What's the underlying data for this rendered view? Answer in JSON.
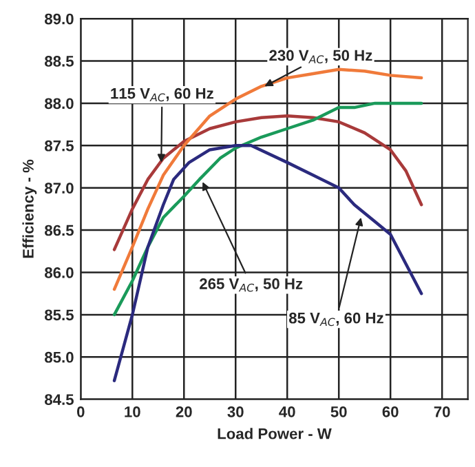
{
  "chart_data": {
    "type": "line",
    "xlabel": "Load Power - W",
    "ylabel": "Efficiency - %",
    "xlim": [
      0,
      75
    ],
    "xticks": [
      0,
      10,
      20,
      30,
      40,
      50,
      60,
      70
    ],
    "ylim": [
      84.5,
      89.0
    ],
    "yticks": [
      84.5,
      {
        "value": 85,
        "label": "85.0"
      },
      85.5,
      {
        "value": 86,
        "label": "86.0"
      },
      86.5,
      {
        "value": 87,
        "label": "87.0"
      },
      87.5,
      {
        "value": 88,
        "label": "88.0"
      },
      88.5,
      {
        "value": 89,
        "label": "89.0"
      }
    ],
    "grid": true,
    "marker": "none",
    "line_style": "solid",
    "series": [
      {
        "color": "#a83a3a",
        "x": [
          6.5,
          10,
          13,
          16,
          20,
          25,
          30,
          35,
          40,
          45,
          50,
          55,
          60,
          63,
          66
        ],
        "values": [
          86.27,
          86.75,
          87.1,
          87.35,
          87.55,
          87.7,
          87.78,
          87.83,
          87.85,
          87.83,
          87.78,
          87.65,
          87.45,
          87.2,
          86.8
        ]
      },
      {
        "color": "#f07a3a",
        "x": [
          6.5,
          10,
          13,
          16,
          20,
          25,
          30,
          35,
          40,
          45,
          50,
          55,
          60,
          66
        ],
        "values": [
          85.8,
          86.3,
          86.75,
          87.15,
          87.5,
          87.85,
          88.05,
          88.2,
          88.3,
          88.35,
          88.4,
          88.38,
          88.33,
          88.3
        ]
      },
      {
        "color": "#1a9a5a",
        "x": [
          6.5,
          10,
          13,
          16,
          20,
          23,
          27,
          30,
          35,
          40,
          45,
          50,
          53,
          57,
          60,
          66
        ],
        "values": [
          85.5,
          85.9,
          86.3,
          86.65,
          86.9,
          87.1,
          87.35,
          87.47,
          87.6,
          87.7,
          87.8,
          87.95,
          87.95,
          88.0,
          88.0,
          88.0
        ]
      },
      {
        "color": "#2b2a7e",
        "x": [
          6.5,
          10,
          13,
          16,
          18,
          21,
          25,
          30,
          33,
          40,
          45,
          50,
          53,
          57,
          60,
          63,
          66
        ],
        "values": [
          84.72,
          85.5,
          86.3,
          86.8,
          87.1,
          87.3,
          87.45,
          87.5,
          87.5,
          87.3,
          87.15,
          87.0,
          86.8,
          86.6,
          86.45,
          86.1,
          85.75
        ]
      }
    ],
    "annotations": [
      {
        "text": "230 V$_{AC}$, 50 Hz",
        "x": 35.6,
        "y": 88.2
      },
      {
        "text": "115 V$_{AC}$, 60 Hz",
        "x": 15.6,
        "y": 87.3
      },
      {
        "text": "265 V$_{AC}$, 50 Hz",
        "x": 23.6,
        "y": 87.07
      },
      {
        "text": "85 V$_{AC}$, 60 Hz",
        "x": 54.3,
        "y": 86.65
      }
    ]
  }
}
